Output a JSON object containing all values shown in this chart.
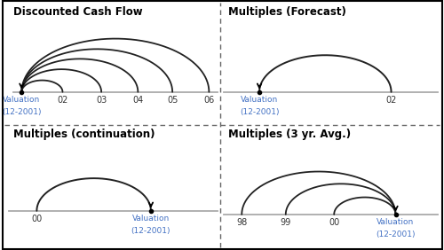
{
  "title_tl": "Discounted Cash Flow",
  "title_tr": "Multiples (Forecast)",
  "title_bl": "Multiples (continuation)",
  "title_br": "Multiples (3 yr. Avg.)",
  "bg_color": "#ffffff",
  "border_color": "#000000",
  "arc_color": "#222222",
  "label_blue": "#4472C4",
  "label_dark": "#333333",
  "baseline_color": "#aaaaaa",
  "divider_color": "#666666",
  "figsize": [
    5.0,
    2.82
  ],
  "dpi": 100
}
